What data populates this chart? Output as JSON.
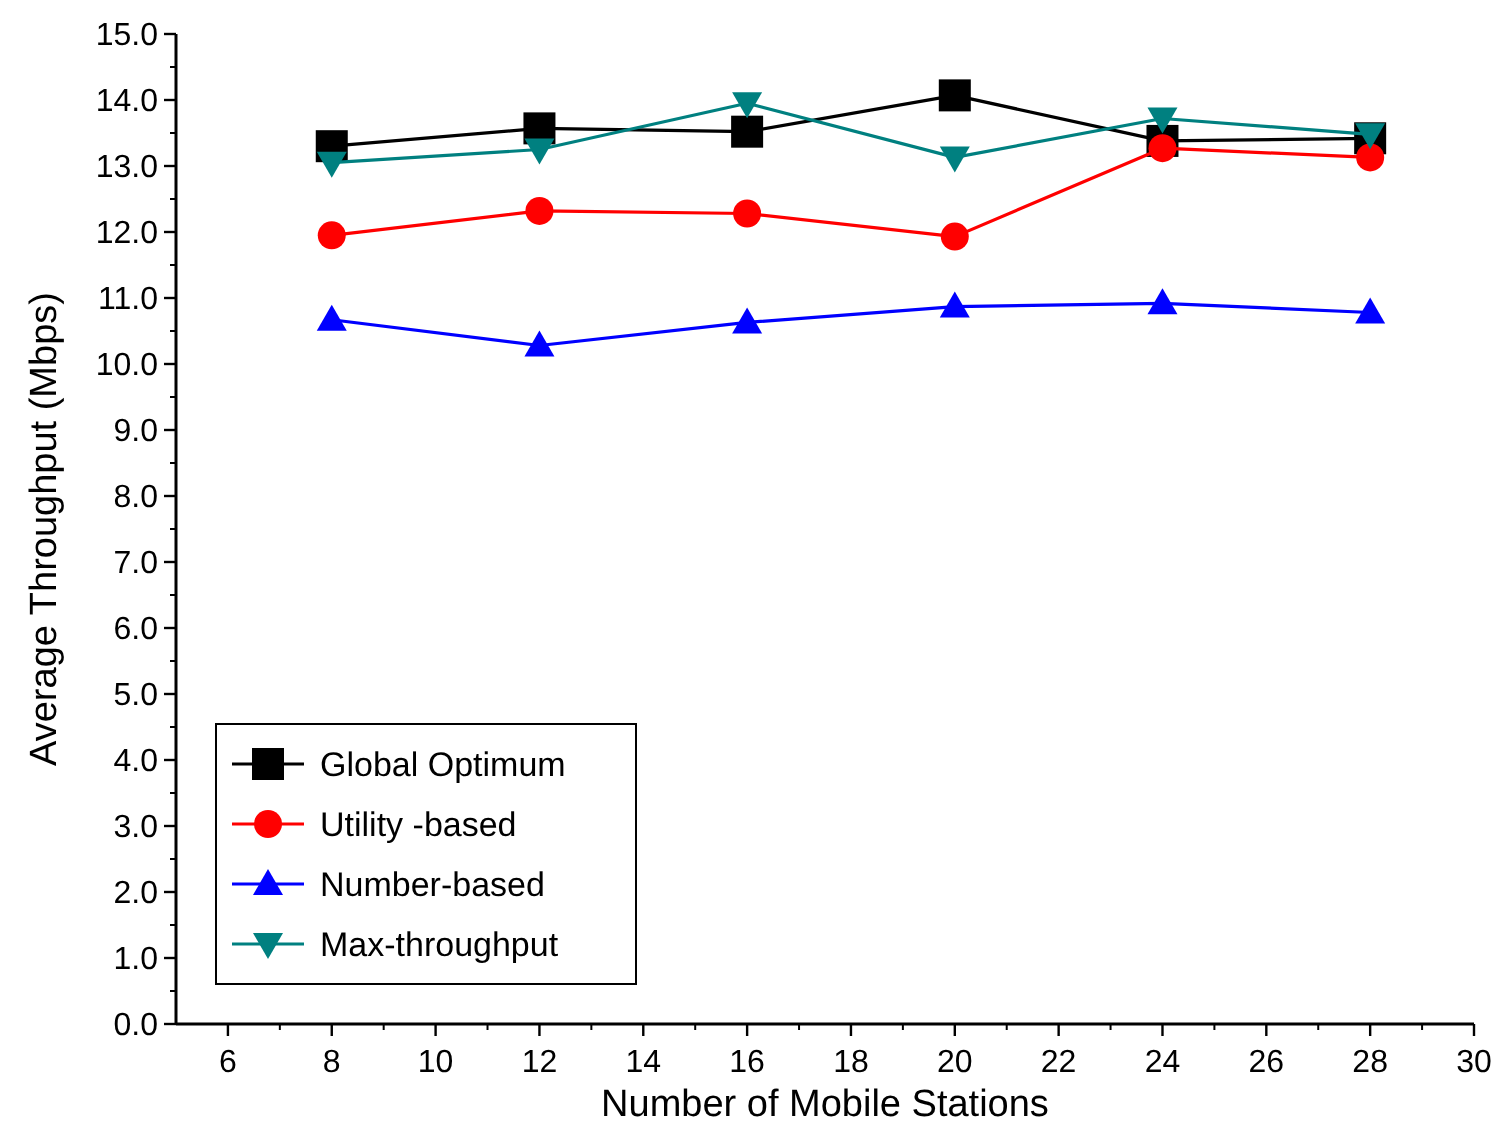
{
  "chart_data": {
    "type": "line",
    "xlabel": "Number of Mobile Stations",
    "ylabel": "Average Throughput (Mbps)",
    "x": [
      8,
      12,
      16,
      20,
      24,
      28
    ],
    "xlim": [
      5,
      30
    ],
    "xticks": [
      6,
      8,
      10,
      12,
      14,
      16,
      18,
      20,
      22,
      24,
      26,
      28,
      30
    ],
    "ylim": [
      0,
      15
    ],
    "yticks": [
      {
        "value": 0,
        "label": "0.0"
      },
      {
        "value": 1,
        "label": "1.0"
      },
      {
        "value": 2,
        "label": "2.0"
      },
      {
        "value": 3,
        "label": "3.0"
      },
      {
        "value": 4,
        "label": "4.0"
      },
      {
        "value": 5,
        "label": "5.0"
      },
      {
        "value": 6,
        "label": "6.0"
      },
      {
        "value": 7,
        "label": "7.0"
      },
      {
        "value": 8,
        "label": "8.0"
      },
      {
        "value": 9,
        "label": "9.0"
      },
      {
        "value": 10,
        "label": "10.0"
      },
      {
        "value": 11,
        "label": "11.0"
      },
      {
        "value": 12,
        "label": "12.0"
      },
      {
        "value": 13,
        "label": "13.0"
      },
      {
        "value": 14,
        "label": "14.0"
      },
      {
        "value": 15,
        "label": "15.0"
      }
    ],
    "legend": "bottom left",
    "grid": false,
    "series": [
      {
        "name": "Global Optimum",
        "color": "#000000",
        "marker": "square",
        "values": [
          13.3,
          13.57,
          13.52,
          14.07,
          13.38,
          13.42
        ]
      },
      {
        "name": "Utility -based",
        "color": "#ff0000",
        "marker": "circle",
        "values": [
          11.95,
          12.32,
          12.28,
          11.93,
          13.27,
          13.13
        ]
      },
      {
        "name": "Number-based",
        "color": "#0000ff",
        "marker": "triangle",
        "values": [
          10.67,
          10.28,
          10.63,
          10.87,
          10.92,
          10.78
        ]
      },
      {
        "name": "Max-throughput",
        "color": "#008080",
        "marker": "triangle-down",
        "values": [
          13.05,
          13.25,
          13.95,
          13.13,
          13.72,
          13.48
        ]
      }
    ]
  }
}
